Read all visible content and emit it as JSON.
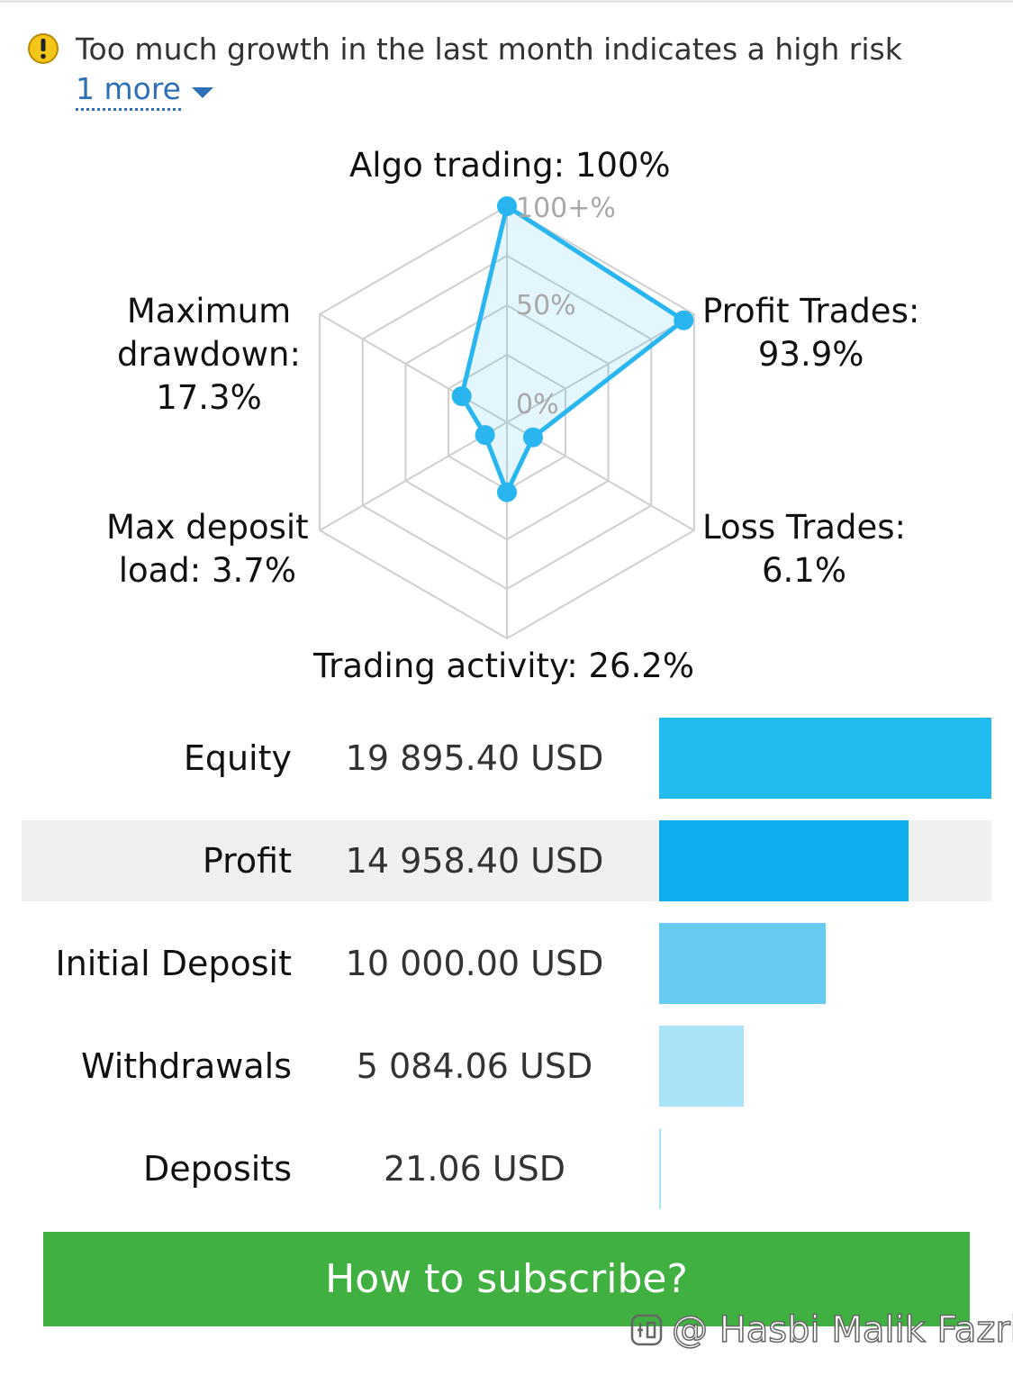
{
  "warning": {
    "text": "Too much growth in the last month indicates a high risk",
    "more_link": "1 more"
  },
  "radar": {
    "scale_labels": [
      "100+%",
      "50%",
      "0%"
    ],
    "accent_color": "#29b6f0",
    "axes": [
      {
        "name": "Algo trading:",
        "value_text": "100%",
        "value": 100
      },
      {
        "name": "Profit Trades:",
        "value_text": "93.9%",
        "value": 93.9
      },
      {
        "name": "Loss Trades:",
        "value_text": "6.1%",
        "value": 6.1
      },
      {
        "name": "Trading activity:",
        "value_text": "26.2%",
        "value": 26.2
      },
      {
        "name": "Max deposit",
        "name_2": "load:",
        "value_text": "3.7%",
        "value": 3.7
      },
      {
        "name": "Maximum",
        "name_2": "drawdown:",
        "value_text": "17.3%",
        "value": 17.3
      }
    ]
  },
  "balances": [
    {
      "label": "Equity",
      "value": "19 895.40 USD",
      "amount": 19895.4,
      "color": "#22bbf0"
    },
    {
      "label": "Profit",
      "value": "14 958.40 USD",
      "amount": 14958.4,
      "color": "#0db0ec"
    },
    {
      "label": "Initial Deposit",
      "value": "10 000.00 USD",
      "amount": 10000.0,
      "color": "#66ccf4"
    },
    {
      "label": "Withdrawals",
      "value": "5 084.06 USD",
      "amount": 5084.06,
      "color": "#aae2f8"
    },
    {
      "label": "Deposits",
      "value": "21.06 USD",
      "amount": 21.06,
      "color": "#aae2f8"
    }
  ],
  "subscribe_button": "How to subscribe?",
  "watermark": "@ Hasbi Malik Fazri",
  "icons": {
    "warning": "exclamation-circle-icon",
    "dropdown": "chevron-down-icon",
    "watermark": "zhihu-logo-icon"
  }
}
